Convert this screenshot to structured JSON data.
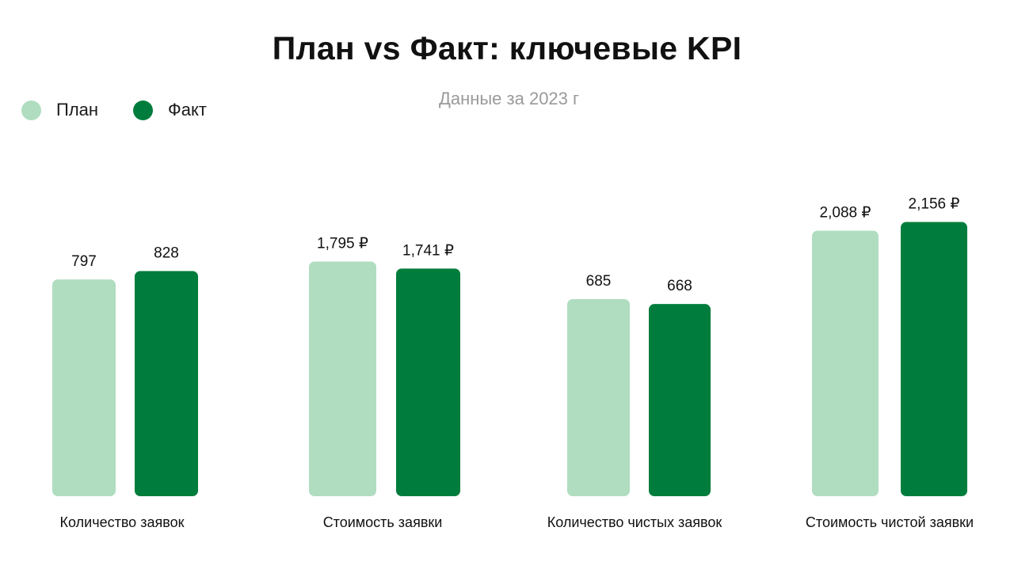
{
  "title": "План vs Факт: ключевые KPI",
  "subtitle": "Данные за 2023 г",
  "colors": {
    "plan": "#b0ddc0",
    "fact": "#007d3c"
  },
  "legend": [
    {
      "label": "План",
      "color": "#b0ddc0"
    },
    {
      "label": "Факт",
      "color": "#007d3c"
    }
  ],
  "chart_data": {
    "type": "bar",
    "categories": [
      "Количество заявок",
      "Стоимость заявки",
      "Количество чистых заявок",
      "Стоимость чистой заявки"
    ],
    "series": [
      {
        "name": "План",
        "values": [
          797,
          1795,
          685,
          2088
        ],
        "labels": [
          "797",
          "1,795 ₽",
          "685",
          "2,088 ₽"
        ]
      },
      {
        "name": "Факт",
        "values": [
          828,
          1741,
          668,
          2156
        ],
        "labels": [
          "828",
          "1,741 ₽",
          "668",
          "2,156 ₽"
        ]
      }
    ],
    "legend_position": "top-left",
    "grid": false
  }
}
